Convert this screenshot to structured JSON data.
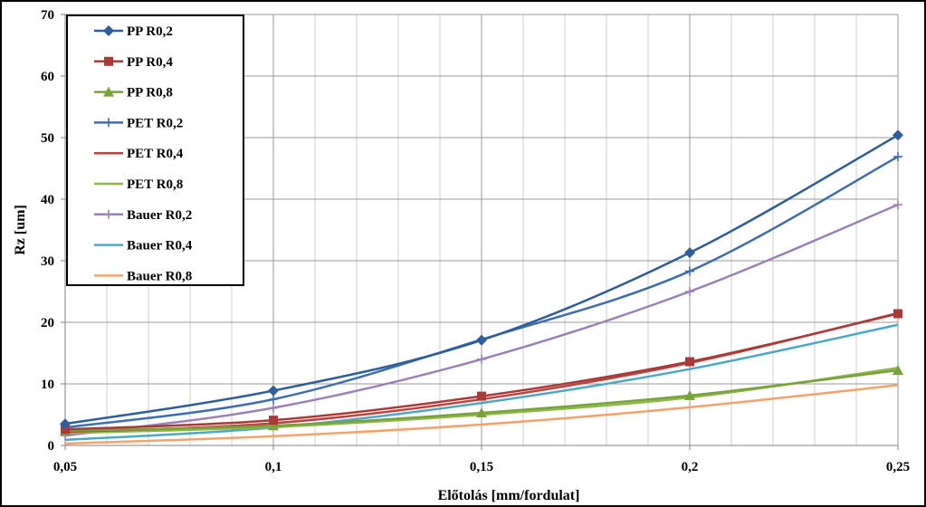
{
  "chart_data": {
    "type": "line",
    "title": "",
    "xlabel": "Előtolás [mm/fordulat]",
    "ylabel": "Rz [um]",
    "xlim": [
      0.05,
      0.25
    ],
    "ylim": [
      0,
      70
    ],
    "x_ticks": [
      0.05,
      0.1,
      0.15,
      0.2,
      0.25
    ],
    "x_tick_labels": [
      "0,05",
      "0,1",
      "0,15",
      "0,2",
      "0,25"
    ],
    "y_ticks": [
      0,
      10,
      20,
      30,
      40,
      50,
      60,
      70
    ],
    "y_tick_labels": [
      "0",
      "10",
      "20",
      "30",
      "40",
      "50",
      "60",
      "70"
    ],
    "grid": true,
    "legend_position": "top-left",
    "x": [
      0.05,
      0.1,
      0.15,
      0.2,
      0.25
    ],
    "series": [
      {
        "name": "PP R0,2",
        "color": "#2e5e9c",
        "marker": "diamond",
        "values": [
          3.5,
          8.9,
          17.1,
          31.3,
          50.4
        ]
      },
      {
        "name": "PP R0,4",
        "color": "#a83a37",
        "marker": "square",
        "values": [
          2.6,
          4.1,
          8.0,
          13.6,
          21.4
        ]
      },
      {
        "name": "PP R0,8",
        "color": "#78a33a",
        "marker": "triangle",
        "values": [
          2.4,
          3.2,
          5.3,
          8.1,
          12.2
        ]
      },
      {
        "name": "PET R0,2",
        "color": "#3f6eb0",
        "marker": "plus",
        "values": [
          2.9,
          7.5,
          17.2,
          28.3,
          46.9
        ]
      },
      {
        "name": "PET R0,4",
        "color": "#b94543",
        "marker": "none",
        "values": [
          2.2,
          3.6,
          7.5,
          13.4,
          21.5
        ]
      },
      {
        "name": "PET R0,8",
        "color": "#8fb84a",
        "marker": "none",
        "values": [
          2.0,
          3.0,
          5.0,
          7.8,
          12.6
        ]
      },
      {
        "name": "Bauer R0,2",
        "color": "#9a82b8",
        "marker": "plus",
        "values": [
          1.6,
          6.1,
          14.0,
          25.0,
          39.1
        ]
      },
      {
        "name": "Bauer R0,4",
        "color": "#4aa8c6",
        "marker": "none",
        "values": [
          0.9,
          2.9,
          6.9,
          12.4,
          19.6
        ]
      },
      {
        "name": "Bauer R0,8",
        "color": "#f2a36a",
        "marker": "none",
        "values": [
          0.3,
          1.5,
          3.4,
          6.2,
          9.8
        ]
      }
    ]
  }
}
